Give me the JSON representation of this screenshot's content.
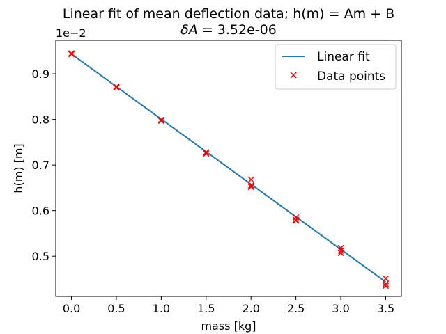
{
  "chart_data": {
    "type": "scatter",
    "title": "Linear fit of mean deflection data; h(m) = Am + B",
    "subtitle_prefix": "δA = ",
    "subtitle_value": "3.52e-06",
    "xlabel": "mass [kg]",
    "ylabel": "h(m) [m]",
    "y_offset_text": "1e−2",
    "xlim": [
      -0.175,
      3.675
    ],
    "ylim": [
      0.4117,
      0.9735
    ],
    "x_ticks": [
      0.0,
      0.5,
      1.0,
      1.5,
      2.0,
      2.5,
      3.0,
      3.5
    ],
    "x_tick_labels": [
      "0.0",
      "0.5",
      "1.0",
      "1.5",
      "2.0",
      "2.5",
      "3.0",
      "3.5"
    ],
    "y_ticks": [
      0.5,
      0.6,
      0.7,
      0.8,
      0.9
    ],
    "y_tick_labels": [
      "0.5",
      "0.6",
      "0.7",
      "0.8",
      "0.9"
    ],
    "grid": false,
    "legend_position": "upper-right",
    "series": [
      {
        "name": "Linear fit",
        "kind": "line",
        "color": "#1f77b4",
        "x": [
          0.0,
          3.5
        ],
        "y": [
          0.9435,
          0.4435
        ]
      },
      {
        "name": "Data points",
        "kind": "marker-x",
        "color": "#ff0000",
        "points": [
          [
            0.0,
            0.945
          ],
          [
            0.0,
            0.943
          ],
          [
            0.0,
            0.944
          ],
          [
            0.5,
            0.872
          ],
          [
            0.5,
            0.87
          ],
          [
            0.5,
            0.871
          ],
          [
            1.0,
            0.799
          ],
          [
            1.0,
            0.797
          ],
          [
            1.0,
            0.798
          ],
          [
            1.5,
            0.728
          ],
          [
            1.5,
            0.725
          ],
          [
            1.5,
            0.727
          ],
          [
            2.0,
            0.668
          ],
          [
            2.0,
            0.655
          ],
          [
            2.0,
            0.652
          ],
          [
            2.5,
            0.585
          ],
          [
            2.5,
            0.58
          ],
          [
            2.5,
            0.578
          ],
          [
            3.0,
            0.518
          ],
          [
            3.0,
            0.512
          ],
          [
            3.0,
            0.507
          ],
          [
            3.5,
            0.451
          ],
          [
            3.5,
            0.439
          ],
          [
            3.5,
            0.435
          ]
        ]
      }
    ]
  }
}
